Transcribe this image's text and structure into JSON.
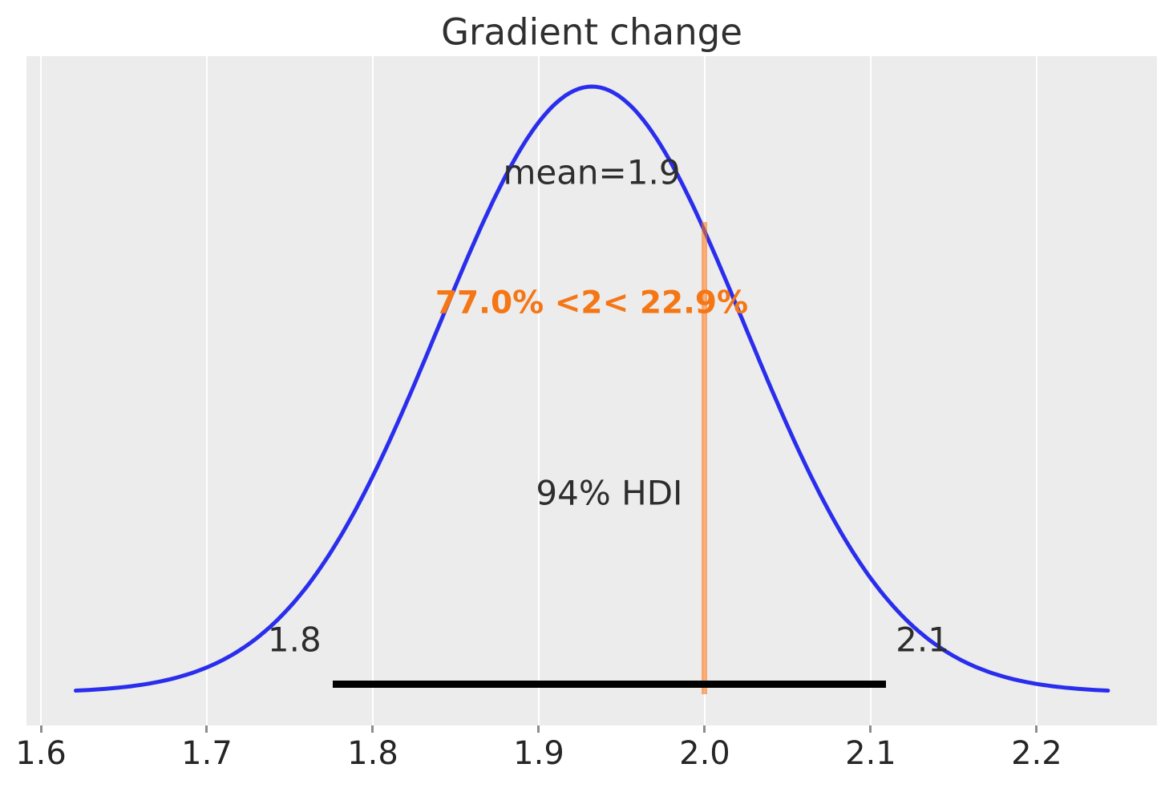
{
  "figure": {
    "background": "#ffffff",
    "plot_background": "#ececec",
    "grid_color": "#ffffff",
    "tick_mark_color": "#8c8c8c",
    "text_color": "#2d2d2d",
    "tick_label_color": "#262626"
  },
  "chart_data": {
    "type": "line",
    "subtype": "kde-posterior-density",
    "title": "Gradient change",
    "xlabel": "",
    "ylabel": "",
    "xlim": [
      1.5913,
      2.2725
    ],
    "x_ticks": [
      1.6,
      1.7,
      1.8,
      1.9,
      2.0,
      2.1,
      2.2
    ],
    "grid": "vertical-only",
    "legend": "none",
    "series": [
      {
        "name": "posterior-kde",
        "color": "#2a2eec",
        "kde_params": {
          "mean": 1.932,
          "sd": 0.092,
          "x_start": 1.621,
          "x_end": 2.243
        },
        "x": [
          1.62,
          1.64,
          1.66,
          1.68,
          1.7,
          1.72,
          1.74,
          1.76,
          1.78,
          1.8,
          1.82,
          1.84,
          1.86,
          1.88,
          1.9,
          1.92,
          1.94,
          1.96,
          1.98,
          2.0,
          2.02,
          2.04,
          2.06,
          2.08,
          2.1,
          2.12,
          2.14,
          2.16,
          2.18,
          2.2,
          2.22,
          2.24
        ],
        "density_normalized": [
          0.003,
          0.007,
          0.013,
          0.024,
          0.042,
          0.07,
          0.113,
          0.174,
          0.255,
          0.357,
          0.477,
          0.607,
          0.736,
          0.852,
          0.941,
          0.992,
          0.996,
          0.955,
          0.873,
          0.761,
          0.633,
          0.502,
          0.38,
          0.274,
          0.189,
          0.124,
          0.078,
          0.046,
          0.026,
          0.014,
          0.008,
          0.004
        ]
      }
    ],
    "annotations": {
      "mean": {
        "label": "mean=1.9",
        "value": 1.9
      },
      "hdi": {
        "label": "94% HDI",
        "low": 1.8,
        "high": 2.1,
        "low_label": "1.8",
        "high_label": "2.1",
        "bar_interval": [
          1.776,
          2.109
        ],
        "bar_color": "#000000"
      },
      "ref_value": {
        "value": 2,
        "label": "77.0% <2< 22.9%",
        "pct_below": 77.0,
        "pct_above": 22.9,
        "line_color": "#fc7614",
        "text_color": "#f57614"
      }
    }
  }
}
